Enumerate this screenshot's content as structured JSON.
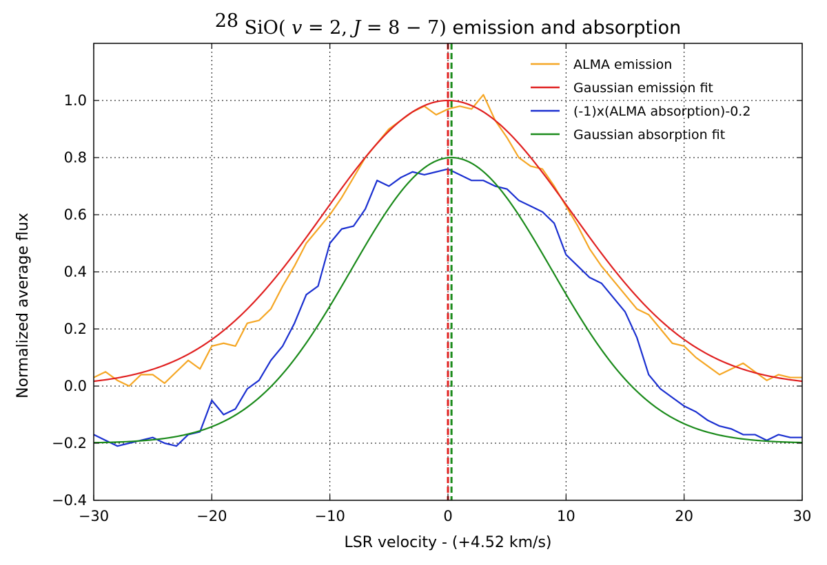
{
  "chart_data": {
    "type": "line",
    "title": {
      "isotope_sup": "28",
      "molecule": "SiO(",
      "v_sym": "v",
      "v_eq": " = 2, ",
      "j_sym": "J",
      "j_eq": " = 8 − 7)",
      "rest": " emission and absorption"
    },
    "xlabel": "LSR velocity - (+4.52 km/s)",
    "ylabel": "Normalized average flux",
    "xlim": [
      -30,
      30
    ],
    "ylim": [
      -0.4,
      1.2
    ],
    "xticks": [
      -30,
      -20,
      -10,
      0,
      10,
      20,
      30
    ],
    "xtick_labels": [
      "−30",
      "−20",
      "−10",
      "0",
      "10",
      "20",
      "30"
    ],
    "yticks": [
      -0.4,
      -0.2,
      0.0,
      0.2,
      0.4,
      0.6,
      0.8,
      1.0
    ],
    "ytick_labels": [
      "−0.4",
      "−0.2",
      "0.0",
      "0.2",
      "0.4",
      "0.6",
      "0.8",
      "1.0"
    ],
    "grid": true,
    "legend_position": "top-right",
    "colors": {
      "emission": "#f5a623",
      "emission_fit": "#e02020",
      "absorption": "#1a2fd0",
      "absorption_fit": "#1a8a1a"
    },
    "series": [
      {
        "name": "ALMA emission",
        "x": [
          -30,
          -29,
          -28,
          -27,
          -26,
          -25,
          -24,
          -23,
          -22,
          -21,
          -20,
          -19,
          -18,
          -17,
          -16,
          -15,
          -14,
          -13,
          -12,
          -11,
          -10,
          -9,
          -8,
          -7,
          -6,
          -5,
          -4,
          -3,
          -2,
          -1,
          0,
          1,
          2,
          3,
          4,
          5,
          6,
          7,
          8,
          9,
          10,
          11,
          12,
          13,
          14,
          15,
          16,
          17,
          18,
          19,
          20,
          21,
          22,
          23,
          24,
          25,
          26,
          27,
          28,
          29,
          30
        ],
        "y": [
          0.03,
          0.05,
          0.02,
          0.0,
          0.04,
          0.04,
          0.01,
          0.05,
          0.09,
          0.06,
          0.14,
          0.15,
          0.14,
          0.22,
          0.23,
          0.27,
          0.35,
          0.42,
          0.5,
          0.55,
          0.6,
          0.66,
          0.73,
          0.8,
          0.85,
          0.9,
          0.93,
          0.96,
          0.98,
          0.95,
          0.97,
          0.98,
          0.97,
          1.02,
          0.93,
          0.87,
          0.8,
          0.77,
          0.76,
          0.7,
          0.63,
          0.56,
          0.48,
          0.42,
          0.37,
          0.32,
          0.27,
          0.25,
          0.2,
          0.15,
          0.14,
          0.1,
          0.07,
          0.04,
          0.06,
          0.08,
          0.05,
          0.02,
          0.04,
          0.03,
          0.03
        ]
      },
      {
        "name": "Gaussian emission fit",
        "gaussian": {
          "amplitude": 1.0,
          "center": 0.0,
          "sigma": 10.5,
          "offset": 0.0
        }
      },
      {
        "name": "(-1)x(ALMA absorption)-0.2",
        "x": [
          -30,
          -29,
          -28,
          -27,
          -26,
          -25,
          -24,
          -23,
          -22,
          -21,
          -20,
          -19,
          -18,
          -17,
          -16,
          -15,
          -14,
          -13,
          -12,
          -11,
          -10,
          -9,
          -8,
          -7,
          -6,
          -5,
          -4,
          -3,
          -2,
          -1,
          0,
          1,
          2,
          3,
          4,
          5,
          6,
          7,
          8,
          9,
          10,
          11,
          12,
          13,
          14,
          15,
          16,
          17,
          18,
          19,
          20,
          21,
          22,
          23,
          24,
          25,
          26,
          27,
          28,
          29,
          30
        ],
        "y": [
          -0.17,
          -0.19,
          -0.21,
          -0.2,
          -0.19,
          -0.18,
          -0.2,
          -0.21,
          -0.17,
          -0.16,
          -0.05,
          -0.1,
          -0.08,
          -0.01,
          0.02,
          0.09,
          0.14,
          0.22,
          0.32,
          0.35,
          0.5,
          0.55,
          0.56,
          0.62,
          0.72,
          0.7,
          0.73,
          0.75,
          0.74,
          0.75,
          0.76,
          0.74,
          0.72,
          0.72,
          0.7,
          0.69,
          0.65,
          0.63,
          0.61,
          0.57,
          0.46,
          0.42,
          0.38,
          0.36,
          0.31,
          0.26,
          0.17,
          0.04,
          -0.01,
          -0.04,
          -0.07,
          -0.09,
          -0.12,
          -0.14,
          -0.15,
          -0.17,
          -0.17,
          -0.19,
          -0.17,
          -0.18,
          -0.18
        ]
      },
      {
        "name": "Gaussian absorption fit",
        "gaussian": {
          "amplitude": 1.0,
          "center": 0.3,
          "sigma": 8.5,
          "offset": -0.2
        }
      }
    ],
    "vlines": [
      {
        "x": 0.0,
        "color": "#e02020"
      },
      {
        "x": 0.3,
        "color": "#1a8a1a"
      }
    ]
  }
}
